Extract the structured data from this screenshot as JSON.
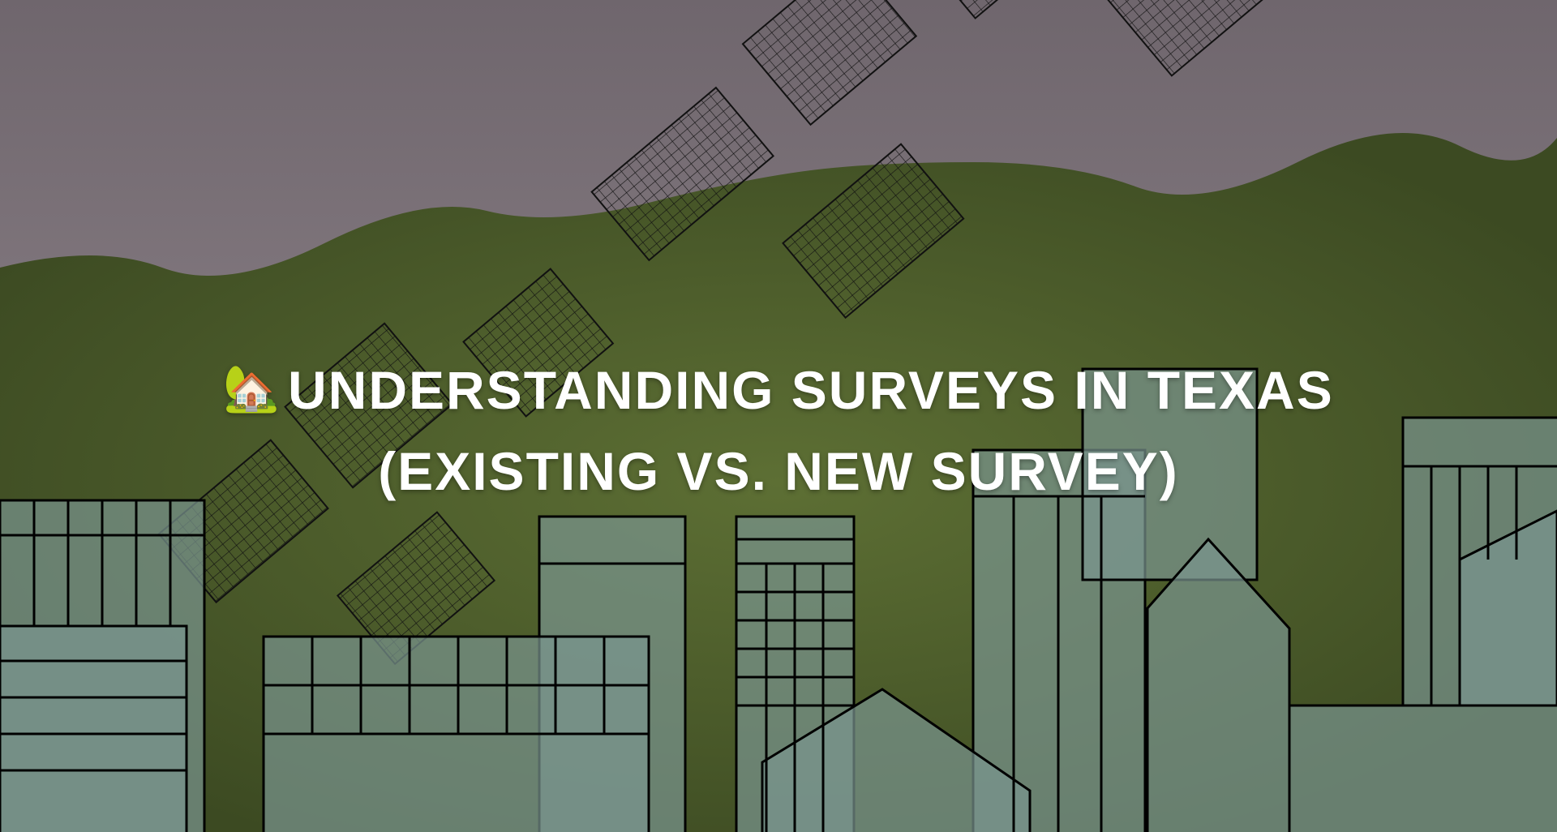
{
  "hero": {
    "icon": "house-with-garden-icon",
    "icon_glyph": "🏡",
    "title_line1": "UNDERSTANDING SURVEYS IN TEXAS",
    "title_line2": "(EXISTING VS. NEW SURVEY)"
  },
  "colors": {
    "sky": "#8a8189",
    "trees": "#4b5a2c",
    "buildings": "#6f8a86",
    "text": "#ffffff"
  }
}
